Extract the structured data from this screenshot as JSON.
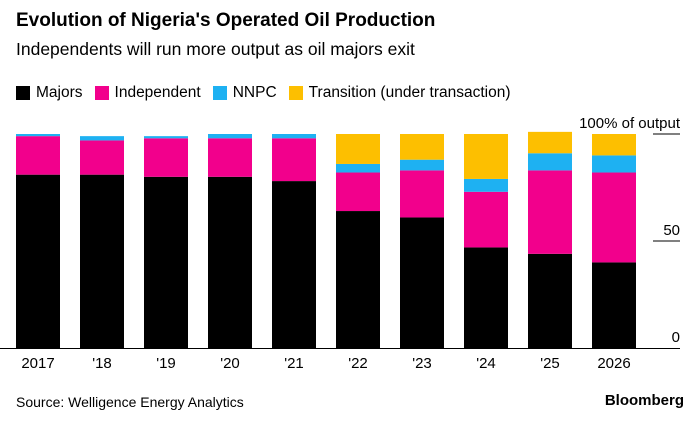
{
  "title": "Evolution of Nigeria's Operated Oil Production",
  "subtitle": "Independents will run more output as oil majors exit",
  "source": "Source: Welligence Energy Analytics",
  "brand": "Bloomberg",
  "chart_data": {
    "type": "bar",
    "stacked": true,
    "categories": [
      "2017",
      "'18",
      "'19",
      "'20",
      "'21",
      "'22",
      "'23",
      "'24",
      "'25",
      "2026"
    ],
    "series": [
      {
        "name": "Majors",
        "color": "#000000",
        "values": [
          81,
          81,
          80,
          80,
          78,
          64,
          61,
          47,
          44,
          40
        ]
      },
      {
        "name": "Independent",
        "color": "#f2008c",
        "values": [
          18,
          16,
          18,
          18,
          20,
          18,
          22,
          26,
          39,
          42
        ]
      },
      {
        "name": "NNPC",
        "color": "#1eb1f2",
        "values": [
          1,
          2,
          1,
          2,
          2,
          4,
          5,
          6,
          8,
          8
        ]
      },
      {
        "name": "Transition (under transaction)",
        "color": "#fdbf00",
        "values": [
          0,
          0,
          0,
          0,
          0,
          14,
          12,
          21,
          10,
          10
        ]
      }
    ],
    "ylim": [
      0,
      100
    ],
    "yticks": [
      0,
      50,
      100
    ],
    "ytick_labels": [
      "0",
      "50",
      "100% of output"
    ],
    "yaxis_position": "right",
    "grid": false,
    "legend_position": "top-left"
  }
}
